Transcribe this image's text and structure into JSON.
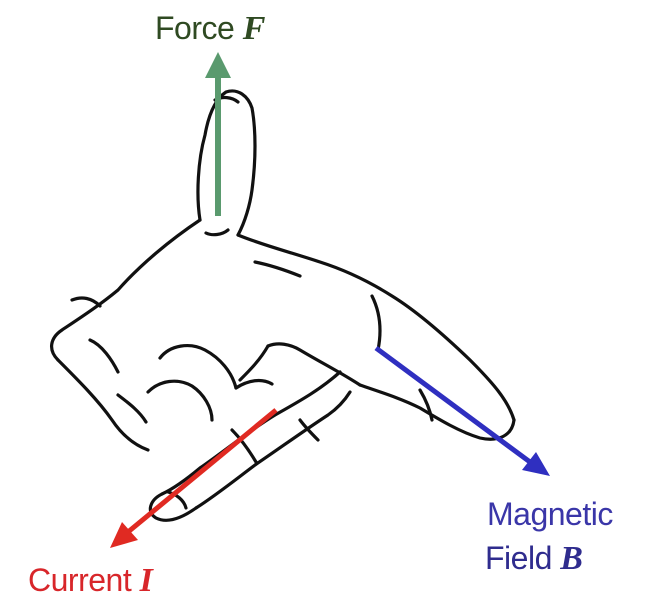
{
  "labels": {
    "force": {
      "text": "Force ",
      "symbol": "F"
    },
    "current": {
      "text": "Current ",
      "symbol": "I"
    },
    "magnetic_field": {
      "line1": "Magnetic",
      "line2_text": "Field ",
      "symbol": "B"
    }
  },
  "colors": {
    "force": "#5a9a6e",
    "current": "#e02a22",
    "magnetic_field": "#2f2fc0",
    "hand_outline": "#111111"
  },
  "icons": [
    "left-hand-sketch",
    "force-arrow",
    "current-arrow",
    "magnetic-field-arrow"
  ]
}
